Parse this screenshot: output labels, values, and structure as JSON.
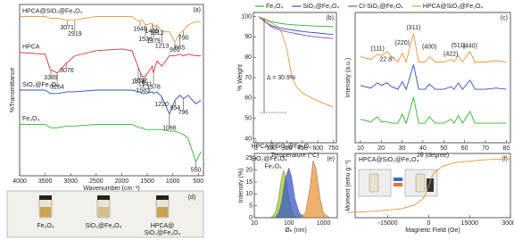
{
  "chart_data": [
    {
      "type": "line",
      "panel_label": "(a)",
      "xlabel": "Wavenumber (cm⁻¹)",
      "ylabel": "%Transmittance",
      "x": [
        4000,
        3500,
        3400,
        3260,
        3075,
        2920,
        2500,
        2000,
        1800,
        1660,
        1600,
        1540,
        1400,
        1380,
        1310,
        1215,
        1065,
        960,
        865,
        790,
        700,
        550,
        450
      ],
      "xlim": [
        4000,
        400
      ],
      "xticks": [
        4000,
        3500,
        3000,
        2500,
        2000,
        1500,
        1000,
        500
      ],
      "ylim": [
        0,
        100
      ],
      "series": [
        {
          "name": "HPCA@SiO₂@Fe₃O₄",
          "color": "#e8963a",
          "values": [
            93,
            93,
            92,
            92,
            91,
            91,
            93,
            93,
            93,
            90,
            91,
            88,
            89,
            87,
            88,
            84,
            84,
            78,
            83,
            85,
            88,
            90,
            90
          ],
          "peaks": [
            3071,
            2919,
            1640,
            1536,
            1409,
            1379,
            1312,
            1213,
            961,
            865,
            790
          ]
        },
        {
          "name": "HPCA",
          "color": "#d8312e",
          "values": [
            72,
            71,
            62,
            60,
            66,
            70,
            73,
            74,
            73,
            62,
            58,
            58,
            64,
            60,
            67,
            64,
            70,
            70,
            71,
            70,
            71,
            70,
            70
          ],
          "peaks": [
            3389,
            3264,
            3076,
            1676,
            1632,
            1583,
            1541,
            1378
          ]
        },
        {
          "name": "SiO₂@Fe₃O₄",
          "color": "#2d4fc0",
          "values": [
            50,
            50,
            48,
            48,
            49,
            49,
            50,
            50,
            50,
            49,
            48,
            48,
            49,
            48,
            49,
            46,
            36,
            44,
            47,
            45,
            47,
            42,
            44
          ],
          "peaks": [
            1220,
            1066,
            954,
            796
          ]
        },
        {
          "name": "Fe₃O₄",
          "color": "#2fb52f",
          "values": [
            30,
            30,
            28,
            28,
            29,
            29,
            30,
            30,
            30,
            28,
            28,
            27,
            27,
            27,
            27,
            27,
            26,
            26,
            25,
            24,
            22,
            8,
            14
          ],
          "peaks": [
            550
          ]
        }
      ]
    },
    {
      "type": "line",
      "panel_label": "(b)",
      "xlabel": "Temperature (°C)",
      "ylabel": "% Weight",
      "legend": "top",
      "annotation": "Δ = 30.9%",
      "x": [
        25,
        100,
        150,
        200,
        250,
        300,
        350,
        400,
        450,
        500,
        600,
        700,
        750
      ],
      "xlim": [
        -25,
        780
      ],
      "xticks": [
        0,
        150,
        300,
        450,
        600,
        750
      ],
      "ylim": [
        38,
        102
      ],
      "yticks": [
        100,
        90,
        80,
        70,
        60,
        50,
        40
      ],
      "series": [
        {
          "name": "Fe₃O₄",
          "color": "#2fb52f",
          "values": [
            100,
            98.5,
            97.5,
            97,
            96.5,
            96.2,
            96,
            95.8,
            95.6,
            95.5,
            95.3,
            95.1,
            95
          ]
        },
        {
          "name": "SiO₂@Fe₃O₄",
          "color": "#2d4fc0",
          "values": [
            100,
            97,
            95.5,
            94.8,
            94.3,
            93.8,
            93.4,
            93,
            92.7,
            92.4,
            91.9,
            91.4,
            91.2
          ]
        },
        {
          "name": "Cl-SiO₂@Fe₃O₄",
          "color": "#9040c0",
          "values": [
            100,
            97,
            95,
            94,
            93.2,
            92.5,
            92,
            91.5,
            91,
            90.5,
            89.9,
            89.4,
            89.2
          ]
        },
        {
          "name": "HPCA@SiO₂@Fe₃O₄",
          "color": "#e8963a",
          "values": [
            100,
            98,
            97,
            95.5,
            92,
            84,
            70,
            65,
            62.5,
            61,
            58.5,
            56.5,
            55.5
          ]
        }
      ]
    },
    {
      "type": "line",
      "panel_label": "(c)",
      "xlabel": "2θ (degree)",
      "ylabel": "Intensity (a.u.)",
      "x": [
        10,
        15,
        18.3,
        20,
        22.8,
        25,
        28,
        30.1,
        32,
        35.5,
        38,
        41,
        43.1,
        46,
        50,
        53.4,
        55,
        57,
        59,
        62.6,
        65,
        70,
        75,
        80
      ],
      "xlim": [
        7.5,
        82
      ],
      "xticks": [
        10,
        20,
        30,
        40,
        50,
        60,
        70,
        80
      ],
      "ylim": [
        0,
        100
      ],
      "peak_labels": [
        {
          "value": 18.3,
          "label": "(111)"
        },
        {
          "value": 30.1,
          "label": "(220)"
        },
        {
          "value": 35.5,
          "label": "(311)"
        },
        {
          "value": 43.1,
          "label": "(400)"
        },
        {
          "value": 53.4,
          "label": "(422)"
        },
        {
          "value": 57,
          "label": "(511)"
        },
        {
          "value": 62.6,
          "label": "(440)"
        }
      ],
      "amorphous_label": {
        "value": 22.8,
        "label": "22.8°"
      },
      "series": [
        {
          "color": "#e8963a",
          "values": [
            66,
            64,
            68,
            67,
            70,
            66,
            62,
            69,
            62,
            84,
            62,
            62,
            66,
            62,
            62,
            64,
            62,
            67,
            62,
            70,
            62,
            62,
            63,
            62
          ]
        },
        {
          "color": "#2d4fc0",
          "values": [
            44,
            42,
            46,
            44,
            46,
            43,
            41,
            47,
            41,
            60,
            41,
            41,
            45,
            41,
            41,
            43,
            41,
            46,
            41,
            48,
            41,
            41,
            42,
            41
          ]
        },
        {
          "color": "#2fb52f",
          "values": [
            18,
            16,
            20,
            16,
            16,
            15,
            15,
            22,
            15,
            35,
            15,
            15,
            20,
            15,
            15,
            18,
            15,
            21,
            15,
            24,
            15,
            15,
            15,
            15
          ]
        }
      ]
    },
    {
      "type": "area",
      "panel_label": "(e)",
      "xlabel": "Øₕ (nm)",
      "ylabel": "Intensity (%)",
      "xscale": "log",
      "x": [
        20,
        30,
        40,
        50,
        60,
        70,
        80,
        100,
        120,
        150,
        200,
        300,
        400,
        500,
        600,
        800,
        1000,
        1500
      ],
      "xlim": [
        10,
        2500
      ],
      "xticks": [
        10,
        100,
        1000
      ],
      "ylim": [
        0,
        27
      ],
      "yticks": [
        0,
        5,
        10,
        15,
        20,
        25
      ],
      "series": [
        {
          "name": "Fe₃O₄",
          "color": "#9ccc2a",
          "values": [
            0,
            0,
            2,
            8,
            16,
            20,
            17,
            8,
            3,
            0.5,
            0,
            0,
            0,
            0,
            0,
            0,
            0,
            0
          ]
        },
        {
          "name": "SiO₂@Fe₃O₄",
          "color": "#3a55c8",
          "values": [
            0,
            0,
            0,
            2,
            6,
            12,
            17,
            21,
            17,
            8,
            2,
            0,
            0,
            0,
            0,
            0,
            0,
            0
          ]
        },
        {
          "name": "HPCA@SiO₂@Fe₃O₄",
          "color": "#e8963a",
          "values": [
            0,
            0,
            0,
            0,
            0,
            0,
            0,
            0,
            0,
            0,
            0,
            2,
            12,
            24,
            21,
            8,
            2,
            0
          ]
        }
      ]
    },
    {
      "type": "line",
      "panel_label": "(f)",
      "xlabel": "Magnetic Field (Oe)",
      "ylabel": "Moment (emu g⁻¹)",
      "title": "HPCA@SiO₂@Fe₃O₄",
      "x": [
        -30000,
        -20000,
        -10000,
        -5000,
        -2000,
        -1000,
        0,
        1000,
        2000,
        5000,
        10000,
        20000,
        30000
      ],
      "xlim": [
        -27000,
        30000
      ],
      "xticks": [
        -15000,
        0,
        15000,
        30000
      ],
      "ylim": [
        -50,
        50
      ],
      "series": [
        {
          "color": "#e8963a",
          "values": [
            -42,
            -40,
            -36,
            -30,
            -20,
            -12,
            0,
            12,
            20,
            30,
            36,
            40,
            42
          ]
        }
      ]
    }
  ],
  "photo_panel": {
    "panel_label": "(d)",
    "captions": [
      [
        "Fe₃O₄"
      ],
      [
        "SiO₂@Fe₃O₄"
      ],
      [
        "HPCA@",
        "SiO₂@Fe₃O₄"
      ]
    ]
  }
}
